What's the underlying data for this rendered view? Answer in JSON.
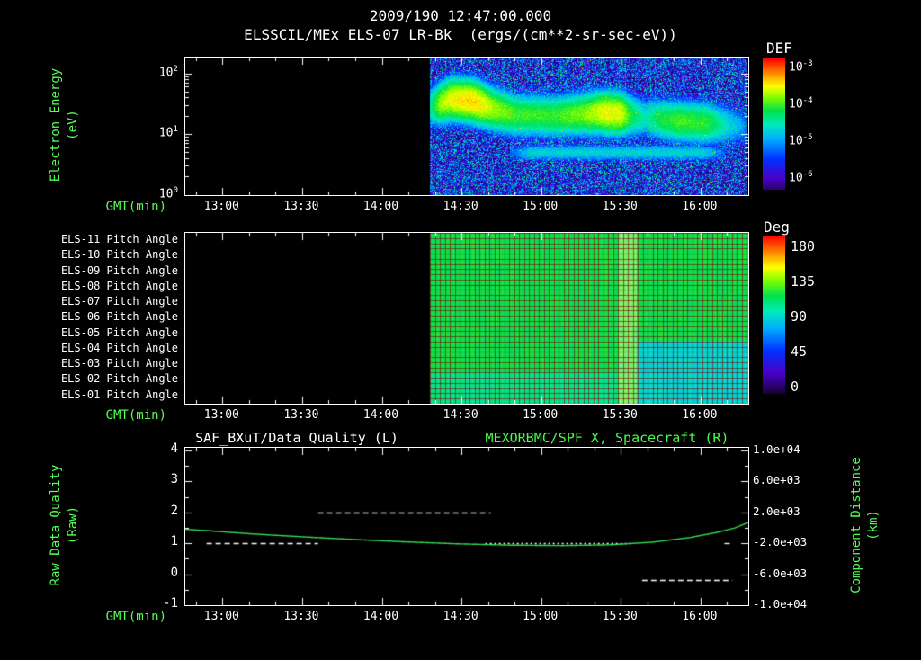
{
  "header": {
    "timestamp_title": "2009/190 12:47:00.000",
    "subtitle": "ELSSCIL/MEx ELS-07 LR-Bk  (ergs/(cm**2-sr-sec-eV))"
  },
  "colors": {
    "background": "#000000",
    "frame": "#ffffff",
    "axis_text": "#ffffff",
    "label_green": "#55ff55",
    "title_green": "#44ff44",
    "grid_mesh": "#7a1212",
    "colormap_stops": [
      [
        0.0,
        [
          25,
          0,
          60
        ]
      ],
      [
        0.13,
        [
          75,
          0,
          200
        ]
      ],
      [
        0.27,
        [
          0,
          50,
          255
        ]
      ],
      [
        0.41,
        [
          0,
          170,
          255
        ]
      ],
      [
        0.52,
        [
          0,
          235,
          190
        ]
      ],
      [
        0.62,
        [
          0,
          225,
          75
        ]
      ],
      [
        0.72,
        [
          130,
          255,
          0
        ]
      ],
      [
        0.8,
        [
          255,
          255,
          0
        ]
      ],
      [
        0.9,
        [
          255,
          130,
          0
        ]
      ],
      [
        1.0,
        [
          255,
          0,
          0
        ]
      ]
    ]
  },
  "time_axis": {
    "label": "GMT(min)",
    "start_time": "12:46",
    "end_time": "16:18",
    "total_minutes": 212,
    "ticks": [
      {
        "label": "13:00",
        "minute": 14
      },
      {
        "label": "13:30",
        "minute": 44
      },
      {
        "label": "14:00",
        "minute": 74
      },
      {
        "label": "14:30",
        "minute": 104
      },
      {
        "label": "15:00",
        "minute": 134
      },
      {
        "label": "15:30",
        "minute": 164
      },
      {
        "label": "16:00",
        "minute": 194
      }
    ],
    "minor_tick_step_minutes": 10
  },
  "chart_data": [
    {
      "type": "heatmap",
      "name": "electron-energy-spectrogram",
      "title": "ELSSCIL/MEx ELS-07 LR-Bk",
      "units": "ergs/(cm**2-sr-sec-eV)",
      "ylabel_lines": [
        "Electron Energy",
        "(eV)"
      ],
      "y_scale": "log",
      "y_min_eV": 1,
      "y_max_eV": 178,
      "y_ticks": [
        {
          "label": "10^2",
          "eV": 100
        },
        {
          "label": "10^1",
          "eV": 10
        },
        {
          "label": "10^0",
          "eV": 1
        }
      ],
      "colorbar": {
        "label": "DEF",
        "ticks": [
          "10^-3",
          "10^-4",
          "10^-5",
          "10^-6"
        ],
        "log10_range": [
          -6.5,
          -3.0
        ]
      },
      "data_start_minute": 92,
      "data_end_minute": 211,
      "background_log10_flux": [
        -6.45,
        -4.9
      ],
      "main_band": {
        "center_log10_eV": [
          [
            92,
            1.45
          ],
          [
            100,
            1.58
          ],
          [
            108,
            1.55
          ],
          [
            116,
            1.42
          ],
          [
            124,
            1.32
          ],
          [
            140,
            1.3
          ],
          [
            156,
            1.36
          ],
          [
            164,
            1.34
          ],
          [
            172,
            1.28
          ],
          [
            184,
            1.22
          ],
          [
            198,
            1.18
          ],
          [
            211,
            1.12
          ]
        ],
        "peak_log10_flux": [
          [
            92,
            -4.6
          ],
          [
            96,
            -3.9
          ],
          [
            102,
            -3.65
          ],
          [
            110,
            -3.6
          ],
          [
            116,
            -3.9
          ],
          [
            124,
            -4.15
          ],
          [
            138,
            -4.2
          ],
          [
            150,
            -4.0
          ],
          [
            158,
            -3.7
          ],
          [
            164,
            -3.75
          ],
          [
            168,
            -4.3
          ],
          [
            173,
            -4.7
          ],
          [
            178,
            -4.35
          ],
          [
            186,
            -4.15
          ],
          [
            196,
            -4.2
          ],
          [
            202,
            -4.6
          ],
          [
            208,
            -5.0
          ],
          [
            211,
            -5.3
          ]
        ],
        "sigma_decades": 0.24
      },
      "low_band": {
        "center_log10_eV": 0.7,
        "sigma_decades": 0.1,
        "peak_log10_flux": -4.85,
        "start_minute": 122,
        "end_minute": 203
      }
    },
    {
      "type": "heatmap",
      "name": "pitch-angle-panel",
      "rows": [
        "ELS-11 Pitch Angle",
        "ELS-10 Pitch Angle",
        "ELS-09 Pitch Angle",
        "ELS-08 Pitch Angle",
        "ELS-07 Pitch Angle",
        "ELS-06 Pitch Angle",
        "ELS-05 Pitch Angle",
        "ELS-04 Pitch Angle",
        "ELS-03 Pitch Angle",
        "ELS-02 Pitch Angle",
        "ELS-01 Pitch Angle"
      ],
      "colorbar": {
        "label": "Deg",
        "ticks": [
          180,
          135,
          90,
          45,
          0
        ],
        "range": [
          0,
          180
        ]
      },
      "data_start_minute": 92,
      "data_end_minute": 211,
      "typical_pitch_deg": 112,
      "lower_row_pitch_deg": 102,
      "cyan_region": {
        "start_minute": 170,
        "rows_from": 7,
        "pitch_deg": 88
      },
      "bright_column": {
        "start_minute": 163,
        "end_minute": 170,
        "pitch_deg": 120
      }
    },
    {
      "type": "line",
      "name": "quality-and-distance",
      "left_title": "SAF_BXuT/Data Quality (L)",
      "right_title": "MEXORBMC/SPF X, Spacecraft (R)",
      "left_ylabel_lines": [
        "Raw Data Quality",
        "(Raw)"
      ],
      "right_ylabel_lines": [
        "Component Distance",
        "(km)"
      ],
      "left_axis": {
        "range": [
          -1,
          4
        ],
        "ticks": [
          4,
          3,
          2,
          1,
          0,
          -1
        ]
      },
      "right_axis": {
        "range": [
          -10000,
          10000
        ],
        "ticks": [
          "1.0e+04",
          "6.0e+03",
          "2.0e+03",
          "-2.0e+03",
          "-6.0e+03",
          "-1.0e+04"
        ]
      },
      "quality_series": {
        "color": "#ffffff",
        "segments": [
          {
            "start_minute": 8,
            "end_minute": 50,
            "value": 1,
            "dash": [
              6,
              4
            ]
          },
          {
            "start_minute": 50,
            "end_minute": 115,
            "value": 2,
            "dash": [
              6,
              4
            ]
          },
          {
            "start_minute": 113,
            "end_minute": 168,
            "value": 1,
            "dash": [
              2,
              3
            ]
          },
          {
            "start_minute": 203,
            "end_minute": 206,
            "value": 1,
            "dash": [
              6,
              4
            ]
          },
          {
            "start_minute": 172,
            "end_minute": 206,
            "value": -0.2,
            "dash": [
              6,
              4
            ]
          }
        ]
      },
      "spacecraft_series": {
        "color": "#33dd55",
        "points_t_km": [
          [
            0,
            -180
          ],
          [
            12,
            -450
          ],
          [
            26,
            -800
          ],
          [
            44,
            -1150
          ],
          [
            62,
            -1480
          ],
          [
            82,
            -1800
          ],
          [
            102,
            -2060
          ],
          [
            122,
            -2230
          ],
          [
            142,
            -2290
          ],
          [
            160,
            -2190
          ],
          [
            176,
            -1850
          ],
          [
            190,
            -1250
          ],
          [
            200,
            -600
          ],
          [
            207,
            0
          ],
          [
            212,
            700
          ]
        ]
      }
    }
  ]
}
